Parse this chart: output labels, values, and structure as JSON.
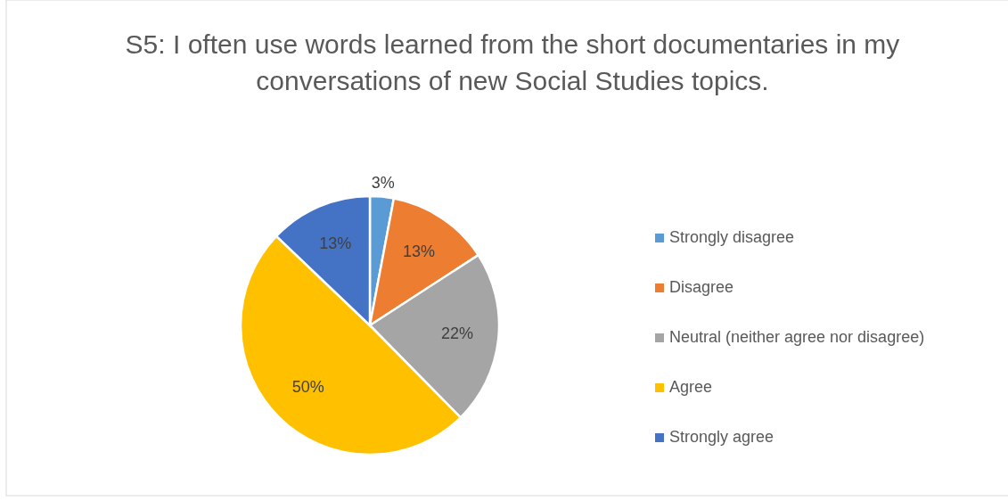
{
  "chart_data": {
    "type": "pie",
    "title": "S5: I often use words learned from the short documentaries in my conversations of new Social Studies topics.",
    "categories": [
      "Strongly disagree",
      "Disagree",
      "Neutral (neither agree nor disagree)",
      "Agree",
      "Strongly agree"
    ],
    "values": [
      3,
      13,
      22,
      50,
      13
    ],
    "value_labels": [
      "3%",
      "13%",
      "22%",
      "50%",
      "13%"
    ],
    "colors": [
      "#5b9bd5",
      "#ed7d31",
      "#a5a5a5",
      "#ffc000",
      "#4472c4"
    ],
    "legend": "right"
  }
}
